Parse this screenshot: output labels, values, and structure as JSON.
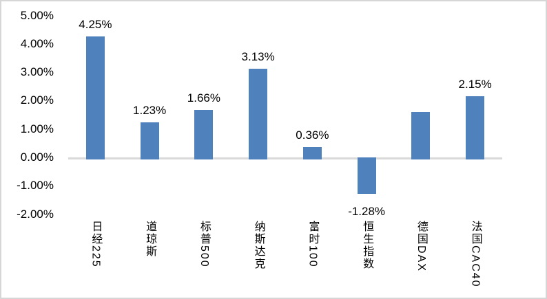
{
  "chart_data": {
    "type": "bar",
    "categories": [
      "日经225",
      "道琼斯",
      "标普500",
      "纳斯达克",
      "富时100",
      "恒生指数",
      "德国DAX",
      "法国CAC40"
    ],
    "values": [
      4.25,
      1.23,
      1.66,
      3.13,
      0.36,
      -1.28,
      1.6,
      2.15
    ],
    "point_labels": [
      "4.25%",
      "1.23%",
      "1.66%",
      "3.13%",
      "0.36%",
      "-1.28%",
      "",
      "2.15%"
    ],
    "y_axis": {
      "ticks": [
        "5.00%",
        "4.00%",
        "3.00%",
        "2.00%",
        "1.00%",
        "0.00%",
        "-1.00%",
        "-2.00%"
      ],
      "values": [
        5,
        4,
        3,
        2,
        1,
        0,
        -1,
        -2
      ],
      "range": [
        -2,
        5
      ]
    },
    "title": "",
    "xlabel": "",
    "ylabel": "",
    "grid": false,
    "legend": null,
    "style": {
      "bar_color": "#4F81BD",
      "axis_line_color": "#D9D9D9",
      "frame_color": "#D6D6D6",
      "background": "#FFFFFF",
      "text_color": "#000000"
    }
  }
}
